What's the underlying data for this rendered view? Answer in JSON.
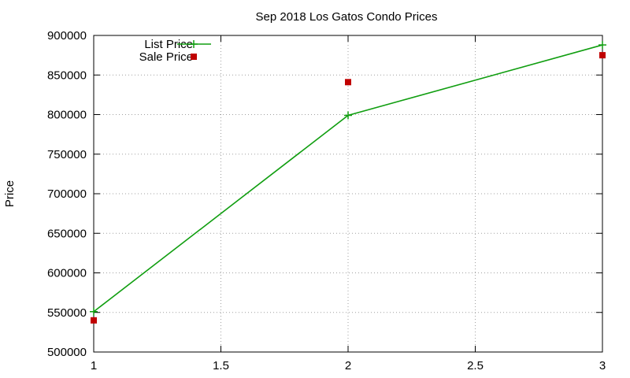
{
  "chart_data": {
    "type": "line",
    "title": "Sep 2018 Los Gatos Condo Prices",
    "xlabel": "",
    "ylabel": "Price",
    "xlim": [
      1,
      3
    ],
    "ylim": [
      500000,
      900000
    ],
    "x_ticks": [
      1,
      1.5,
      2,
      2.5,
      3
    ],
    "x_tick_labels": [
      "1",
      "1.5",
      "2",
      "2.5",
      "3"
    ],
    "y_ticks": [
      500000,
      550000,
      600000,
      650000,
      700000,
      750000,
      800000,
      850000,
      900000
    ],
    "y_tick_labels": [
      "500000",
      "550000",
      "600000",
      "650000",
      "700000",
      "750000",
      "800000",
      "850000",
      "900000"
    ],
    "grid": true,
    "legend_position": "top-left",
    "series": [
      {
        "name": "List Price",
        "style": "line-points",
        "marker": "plus",
        "color": "#109e10",
        "x": [
          1,
          2,
          3
        ],
        "y": [
          551000,
          799000,
          888000
        ]
      },
      {
        "name": "Sale Price",
        "style": "points",
        "marker": "square",
        "color": "#c00000",
        "x": [
          1,
          2,
          3
        ],
        "y": [
          540000,
          841000,
          875000
        ]
      }
    ]
  }
}
